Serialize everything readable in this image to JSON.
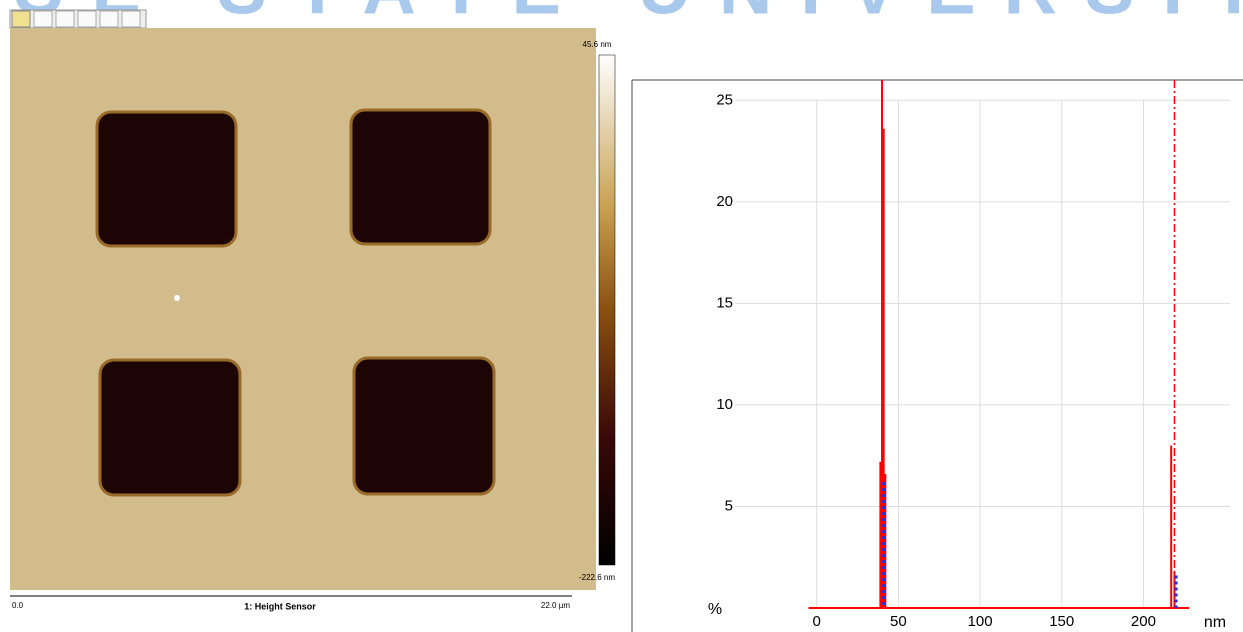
{
  "watermark": "BOISE STATE UNIVERSITY",
  "afm_image": {
    "scale_max": "45.6 nm",
    "scale_min": "-222.6 nm",
    "x_start": "0.0",
    "x_end": "22.0 µm",
    "channel": "1: Height Sensor"
  },
  "chart_data": {
    "type": "histogram",
    "y_label": "%",
    "x_label": "nm",
    "xlim": [
      -50,
      253
    ],
    "ylim": [
      0,
      26
    ],
    "xticks": [
      0,
      50,
      100,
      150,
      200
    ],
    "yticks": [
      5,
      10,
      15,
      20,
      25
    ],
    "grid": true,
    "series": [
      {
        "color": "#ff0000",
        "style": "line",
        "x": [
          -5,
          228
        ],
        "values": [
          0,
          0
        ]
      },
      {
        "color": "#ff0000",
        "style": "bar",
        "x": [
          39,
          40,
          41,
          42,
          217,
          219
        ],
        "values": [
          7.2,
          26,
          23.6,
          6.6,
          8.0,
          1.8
        ]
      },
      {
        "color": "#ff0000",
        "style": "dashdot",
        "x": [
          219
        ],
        "values": [
          26
        ]
      },
      {
        "color": "#1a2fe0",
        "style": "dotted",
        "x": [
          41,
          220
        ],
        "values": [
          6.2,
          1.6
        ]
      }
    ]
  }
}
